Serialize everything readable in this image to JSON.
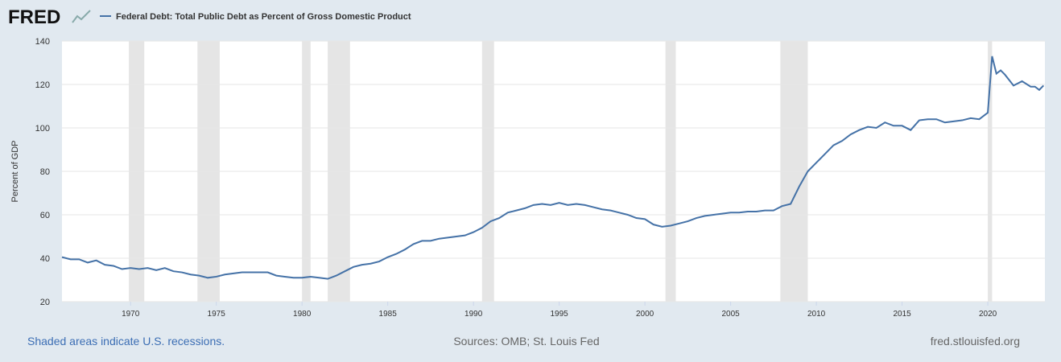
{
  "chart_data": {
    "type": "line",
    "logo": "FRED",
    "title": "Federal Debt: Total Public Debt as Percent of Gross Domestic Product",
    "y_label": "Percent of GDP",
    "note": "Shaded areas indicate U.S. recessions.",
    "source": "Sources: OMB; St. Louis Fed",
    "site": "fred.stlouisfed.org",
    "x": [
      1966,
      1966.5,
      1967,
      1967.5,
      1968,
      1968.5,
      1969,
      1969.5,
      1970,
      1970.5,
      1971,
      1971.5,
      1972,
      1972.5,
      1973,
      1973.5,
      1974,
      1974.5,
      1975,
      1975.5,
      1976,
      1976.5,
      1977,
      1977.5,
      1978,
      1978.5,
      1979,
      1979.5,
      1980,
      1980.5,
      1981,
      1981.5,
      1982,
      1982.5,
      1983,
      1983.5,
      1984,
      1984.5,
      1985,
      1985.5,
      1986,
      1986.5,
      1987,
      1987.5,
      1988,
      1988.5,
      1989,
      1989.5,
      1990,
      1990.5,
      1991,
      1991.5,
      1992,
      1992.5,
      1993,
      1993.5,
      1994,
      1994.5,
      1995,
      1995.5,
      1996,
      1996.5,
      1997,
      1997.5,
      1998,
      1998.5,
      1999,
      1999.5,
      2000,
      2000.5,
      2001,
      2001.5,
      2002,
      2002.5,
      2003,
      2003.5,
      2004,
      2004.5,
      2005,
      2005.5,
      2006,
      2006.5,
      2007,
      2007.5,
      2008,
      2008.5,
      2009,
      2009.5,
      2010,
      2010.5,
      2011,
      2011.5,
      2012,
      2012.5,
      2013,
      2013.5,
      2014,
      2014.5,
      2015,
      2015.5,
      2016,
      2016.5,
      2017,
      2017.5,
      2018,
      2018.5,
      2019,
      2019.5,
      2020,
      2020.25,
      2020.5,
      2020.75,
      2021,
      2021.5,
      2022,
      2022.5,
      2022.75,
      2023,
      2023.25
    ],
    "series": [
      {
        "name": "Federal Debt: Total Public Debt as Percent of Gross Domestic Product",
        "color": "#4572a7",
        "values": [
          40.5,
          39.5,
          39.5,
          38,
          39,
          37,
          36.5,
          35,
          35.5,
          35,
          35.5,
          34.5,
          35.5,
          34,
          33.5,
          32.5,
          32,
          31,
          31.5,
          32.5,
          33,
          33.5,
          33.5,
          33.5,
          33.5,
          32,
          31.5,
          31,
          31,
          31.5,
          31,
          30.5,
          32,
          34,
          36,
          37,
          37.5,
          38.5,
          40.5,
          42,
          44,
          46.5,
          48,
          48,
          49,
          49.5,
          50,
          50.5,
          52,
          54,
          57,
          58.5,
          61,
          62,
          63,
          64.5,
          65,
          64.5,
          65.5,
          64.5,
          65,
          64.5,
          63.5,
          62.5,
          62,
          61,
          60,
          58.5,
          58,
          55.5,
          54.5,
          55,
          56,
          57,
          58.5,
          59.5,
          60,
          60.5,
          61,
          61,
          61.5,
          61.5,
          62,
          62,
          64,
          65,
          73,
          80,
          84,
          88,
          92,
          94,
          97,
          99,
          100.5,
          100,
          102.5,
          101,
          101,
          99,
          103.5,
          104,
          104,
          102.5,
          103,
          103.5,
          104.5,
          104,
          107,
          133,
          125,
          126.5,
          124.5,
          119.5,
          121.5,
          119,
          119,
          117.5,
          119.5
        ]
      }
    ],
    "recessions": [
      [
        1969.9,
        1970.8
      ],
      [
        1973.9,
        1975.2
      ],
      [
        1980,
        1980.5
      ],
      [
        1981.5,
        1982.8
      ],
      [
        1990.5,
        1991.2
      ],
      [
        2001.2,
        2001.8
      ],
      [
        2007.9,
        2009.5
      ],
      [
        2020,
        2020.25
      ]
    ],
    "xlim": [
      1966,
      2023.33
    ],
    "ylim": [
      20,
      140
    ],
    "xticks": [
      1970,
      1975,
      1980,
      1985,
      1990,
      1995,
      2000,
      2005,
      2010,
      2015,
      2020
    ],
    "yticks": [
      20,
      40,
      60,
      80,
      100,
      120,
      140
    ],
    "grid": true
  }
}
